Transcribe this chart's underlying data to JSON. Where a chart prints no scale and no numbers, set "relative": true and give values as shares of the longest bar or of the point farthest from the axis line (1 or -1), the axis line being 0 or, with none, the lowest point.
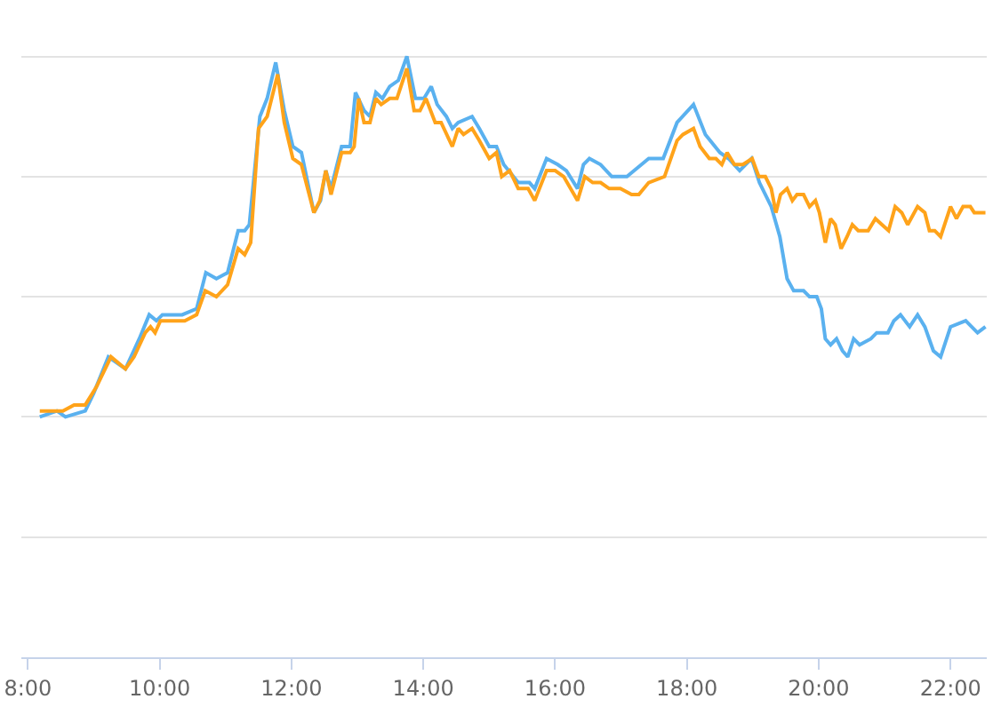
{
  "chart_data": {
    "type": "line",
    "relative": true,
    "grid": "y",
    "marker": "none",
    "line_style": "solid",
    "xlim": [
      7.9,
      22.55
    ],
    "xticks": [
      {
        "value": 8,
        "label": "8:00"
      },
      {
        "value": 10,
        "label": "10:00"
      },
      {
        "value": 12,
        "label": "12:00"
      },
      {
        "value": 14,
        "label": "14:00"
      },
      {
        "value": 16,
        "label": "16:00"
      },
      {
        "value": 18,
        "label": "18:00"
      },
      {
        "value": 20,
        "label": "20:00"
      },
      {
        "value": 22,
        "label": "22:00"
      }
    ],
    "series": [
      {
        "color": "#5ab1ef",
        "x": [
          8.18,
          8.44,
          8.57,
          8.87,
          9.0,
          9.22,
          9.48,
          9.69,
          9.84,
          9.95,
          10.04,
          10.34,
          10.56,
          10.7,
          10.86,
          11.03,
          11.19,
          11.29,
          11.36,
          11.52,
          11.63,
          11.76,
          11.89,
          12.02,
          12.15,
          12.34,
          12.44,
          12.52,
          12.6,
          12.76,
          12.89,
          12.97,
          13.1,
          13.19,
          13.28,
          13.38,
          13.49,
          13.62,
          13.75,
          13.88,
          14.01,
          14.12,
          14.21,
          14.35,
          14.44,
          14.53,
          14.74,
          14.85,
          15.0,
          15.11,
          15.22,
          15.44,
          15.61,
          15.69,
          15.87,
          16.04,
          16.17,
          16.34,
          16.43,
          16.52,
          16.69,
          16.86,
          17.09,
          17.2,
          17.42,
          17.64,
          17.85,
          18.1,
          18.28,
          18.5,
          18.63,
          18.8,
          18.98,
          19.1,
          19.28,
          19.41,
          19.52,
          19.62,
          19.77,
          19.86,
          19.97,
          20.04,
          20.1,
          20.18,
          20.27,
          20.36,
          20.44,
          20.53,
          20.62,
          20.79,
          20.88,
          21.05,
          21.14,
          21.24,
          21.38,
          21.5,
          21.61,
          21.74,
          21.85,
          22.0,
          22.23,
          22.41,
          22.53
        ],
        "values": [
          0.4,
          0.41,
          0.4,
          0.41,
          0.44,
          0.5,
          0.48,
          0.53,
          0.57,
          0.56,
          0.57,
          0.57,
          0.58,
          0.64,
          0.63,
          0.64,
          0.71,
          0.71,
          0.72,
          0.9,
          0.93,
          0.99,
          0.91,
          0.85,
          0.84,
          0.74,
          0.76,
          0.81,
          0.78,
          0.85,
          0.85,
          0.94,
          0.91,
          0.9,
          0.94,
          0.93,
          0.95,
          0.96,
          1.0,
          0.93,
          0.93,
          0.95,
          0.92,
          0.9,
          0.88,
          0.89,
          0.9,
          0.88,
          0.85,
          0.85,
          0.82,
          0.79,
          0.79,
          0.78,
          0.83,
          0.82,
          0.81,
          0.78,
          0.82,
          0.83,
          0.82,
          0.8,
          0.8,
          0.81,
          0.83,
          0.83,
          0.89,
          0.92,
          0.87,
          0.84,
          0.83,
          0.81,
          0.83,
          0.79,
          0.75,
          0.7,
          0.63,
          0.61,
          0.61,
          0.6,
          0.6,
          0.58,
          0.53,
          0.52,
          0.53,
          0.51,
          0.5,
          0.53,
          0.52,
          0.53,
          0.54,
          0.54,
          0.56,
          0.57,
          0.55,
          0.57,
          0.55,
          0.51,
          0.5,
          0.55,
          0.56,
          0.54,
          0.55
        ]
      },
      {
        "color": "#ffa31a",
        "x": [
          8.18,
          8.53,
          8.7,
          8.87,
          9.04,
          9.26,
          9.48,
          9.61,
          9.78,
          9.86,
          9.93,
          10.01,
          10.25,
          10.38,
          10.56,
          10.69,
          10.86,
          11.03,
          11.19,
          11.29,
          11.38,
          11.5,
          11.63,
          11.79,
          11.89,
          12.02,
          12.15,
          12.34,
          12.43,
          12.52,
          12.6,
          12.76,
          12.89,
          12.95,
          13.02,
          13.1,
          13.19,
          13.28,
          13.36,
          13.49,
          13.6,
          13.75,
          13.86,
          13.95,
          14.04,
          14.18,
          14.27,
          14.44,
          14.53,
          14.61,
          14.74,
          14.85,
          15.0,
          15.11,
          15.19,
          15.31,
          15.44,
          15.59,
          15.69,
          15.87,
          16.0,
          16.13,
          16.34,
          16.45,
          16.57,
          16.69,
          16.82,
          16.99,
          17.16,
          17.27,
          17.42,
          17.66,
          17.85,
          17.94,
          18.1,
          18.2,
          18.34,
          18.44,
          18.53,
          18.61,
          18.72,
          18.85,
          18.99,
          19.09,
          19.19,
          19.28,
          19.35,
          19.42,
          19.52,
          19.6,
          19.67,
          19.77,
          19.86,
          19.95,
          20.01,
          20.1,
          20.18,
          20.25,
          20.34,
          20.43,
          20.51,
          20.6,
          20.75,
          20.86,
          20.96,
          21.06,
          21.16,
          21.26,
          21.35,
          21.5,
          21.61,
          21.68,
          21.76,
          21.85,
          22.0,
          22.09,
          22.19,
          22.3,
          22.36,
          22.53
        ],
        "values": [
          0.41,
          0.41,
          0.42,
          0.42,
          0.45,
          0.5,
          0.48,
          0.5,
          0.54,
          0.55,
          0.54,
          0.56,
          0.56,
          0.56,
          0.57,
          0.61,
          0.6,
          0.62,
          0.68,
          0.67,
          0.69,
          0.88,
          0.9,
          0.97,
          0.89,
          0.83,
          0.82,
          0.74,
          0.76,
          0.81,
          0.77,
          0.84,
          0.84,
          0.85,
          0.93,
          0.89,
          0.89,
          0.93,
          0.92,
          0.93,
          0.93,
          0.98,
          0.91,
          0.91,
          0.93,
          0.89,
          0.89,
          0.85,
          0.88,
          0.87,
          0.88,
          0.86,
          0.83,
          0.84,
          0.8,
          0.81,
          0.78,
          0.78,
          0.76,
          0.81,
          0.81,
          0.8,
          0.76,
          0.8,
          0.79,
          0.79,
          0.78,
          0.78,
          0.77,
          0.77,
          0.79,
          0.8,
          0.86,
          0.87,
          0.88,
          0.85,
          0.83,
          0.83,
          0.82,
          0.84,
          0.82,
          0.82,
          0.83,
          0.8,
          0.8,
          0.78,
          0.74,
          0.77,
          0.78,
          0.76,
          0.77,
          0.77,
          0.75,
          0.76,
          0.74,
          0.69,
          0.73,
          0.72,
          0.68,
          0.7,
          0.72,
          0.71,
          0.71,
          0.73,
          0.72,
          0.71,
          0.75,
          0.74,
          0.72,
          0.75,
          0.74,
          0.71,
          0.71,
          0.7,
          0.75,
          0.73,
          0.75,
          0.75,
          0.74,
          0.74
        ]
      }
    ]
  }
}
